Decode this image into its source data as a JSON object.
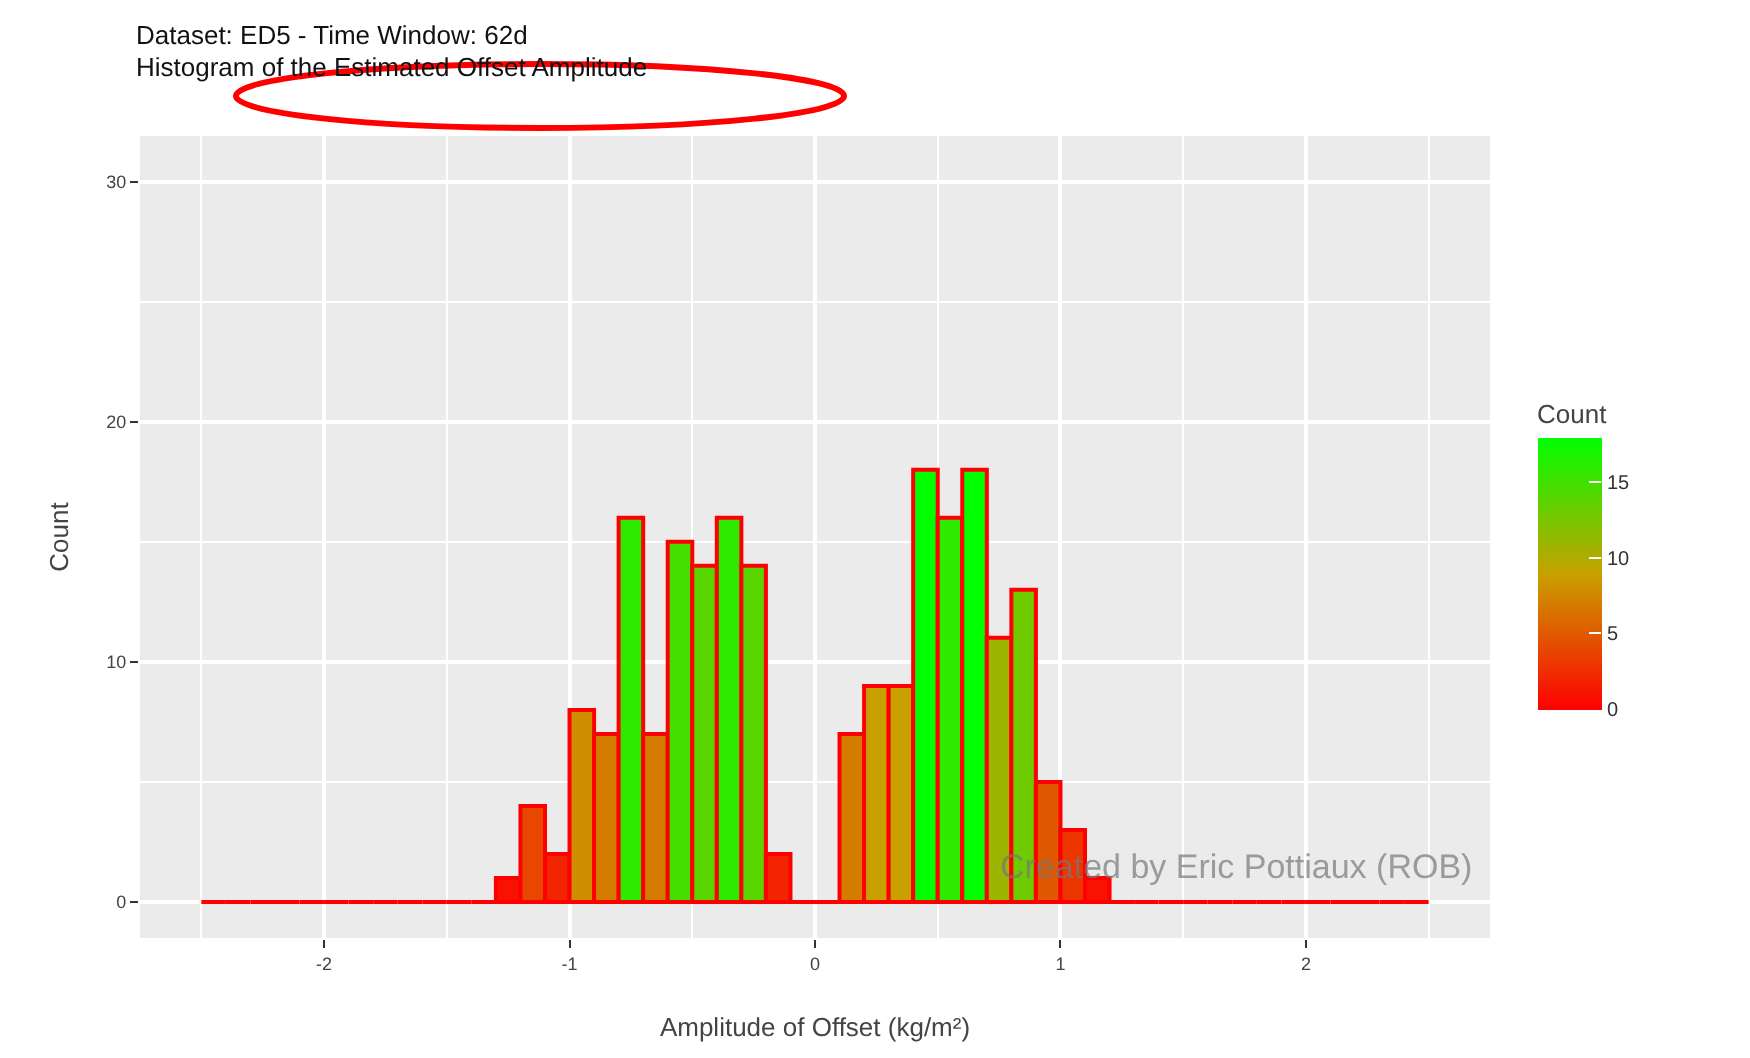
{
  "chart_data": {
    "type": "histogram",
    "title": "Dataset: ED5 - Time Window: 62d",
    "subtitle": "Histogram of the Estimated Offset Amplitude",
    "xlabel": "Amplitude of Offset (kg/m²)",
    "ylabel": "Count",
    "clabel": "Count",
    "bins": [
      -2.5,
      -2.4,
      -2.3,
      -2.2,
      -2.1,
      -2.0,
      -1.9,
      -1.8,
      -1.7,
      -1.6,
      -1.5,
      -1.4,
      -1.3,
      -1.2,
      -1.1,
      -1.0,
      -0.9,
      -0.8,
      -0.7,
      -0.6,
      -0.5,
      -0.4,
      -0.3,
      -0.2,
      -0.1,
      0.0,
      0.1,
      0.2,
      0.3,
      0.4,
      0.5,
      0.6,
      0.7,
      0.8,
      0.9,
      1.0,
      1.1,
      1.2,
      1.3,
      1.4,
      1.5,
      1.6,
      1.7,
      1.8,
      1.9,
      2.0,
      2.1,
      2.2,
      2.3,
      2.4,
      2.5
    ],
    "values": [
      0,
      0,
      0,
      0,
      0,
      0,
      0,
      0,
      0,
      0,
      0,
      0,
      1,
      4,
      2,
      8,
      7,
      16,
      7,
      15,
      14,
      16,
      14,
      2,
      0,
      0,
      7,
      9,
      9,
      18,
      16,
      18,
      11,
      13,
      5,
      3,
      1,
      0,
      0,
      0,
      0,
      0,
      0,
      0,
      0,
      0,
      0,
      0,
      0,
      0
    ],
    "color": "#ff0000",
    "clim": [
      0,
      18
    ],
    "cticks": [
      0,
      5,
      10,
      15
    ],
    "xlim": [
      -2.75,
      2.75
    ],
    "xticks": [
      -2,
      -1,
      0,
      1,
      2
    ],
    "ylim": [
      -1.5,
      31.9
    ],
    "yticks": [
      0,
      10,
      20,
      30
    ],
    "grid": true,
    "legend": false,
    "annotations": [
      "Created by Eric Pottiaux (ROB)"
    ]
  }
}
